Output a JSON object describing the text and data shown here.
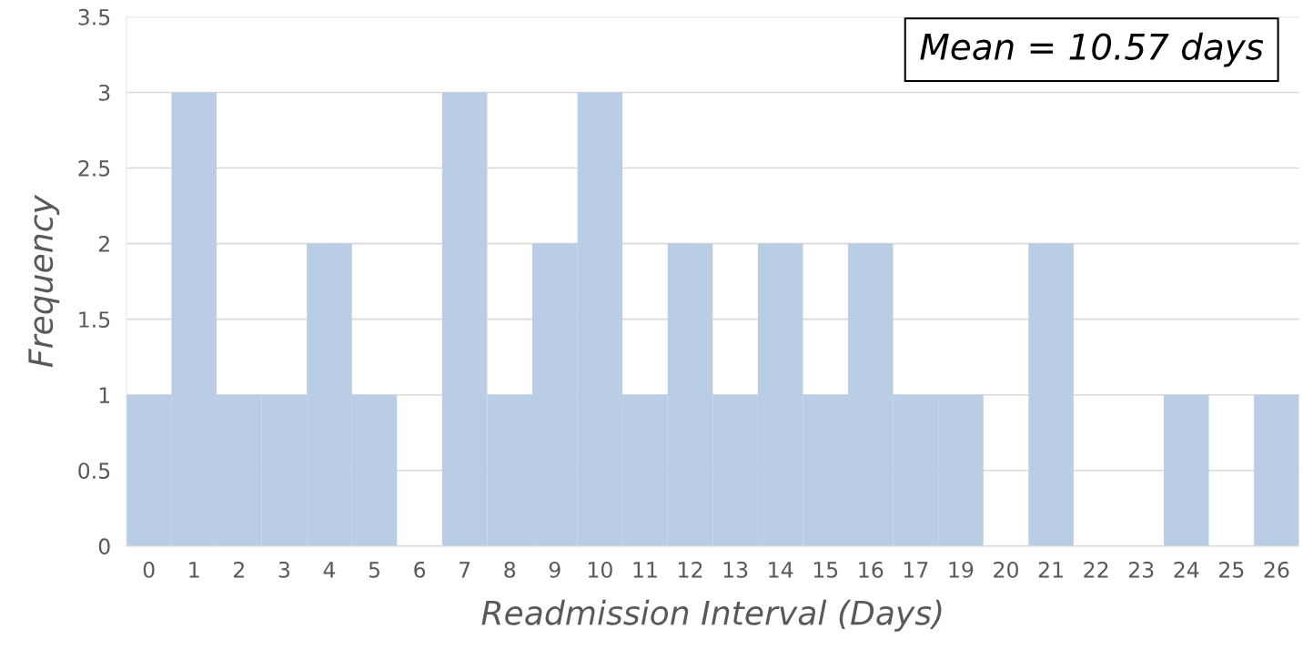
{
  "chart_data": {
    "type": "bar",
    "xlabel": "Readmission Interval (Days)",
    "ylabel": "Frequency",
    "categories": [
      "0",
      "1",
      "2",
      "3",
      "4",
      "5",
      "6",
      "7",
      "8",
      "9",
      "10",
      "11",
      "12",
      "13",
      "14",
      "15",
      "16",
      "17",
      "19",
      "20",
      "21",
      "22",
      "23",
      "24",
      "25",
      "26"
    ],
    "values": [
      1,
      3,
      1,
      1,
      2,
      1,
      0,
      3,
      1,
      2,
      3,
      1,
      2,
      1,
      2,
      1,
      2,
      1,
      1,
      0,
      2,
      0,
      0,
      1,
      0,
      1
    ],
    "color": "#b9cde5",
    "ylim": [
      0,
      3.5
    ],
    "yticks": [
      0,
      0.5,
      1,
      1.5,
      2,
      2.5,
      3,
      3.5
    ],
    "grid": "y",
    "annotations": [
      "Mean = 10.57 days"
    ]
  }
}
